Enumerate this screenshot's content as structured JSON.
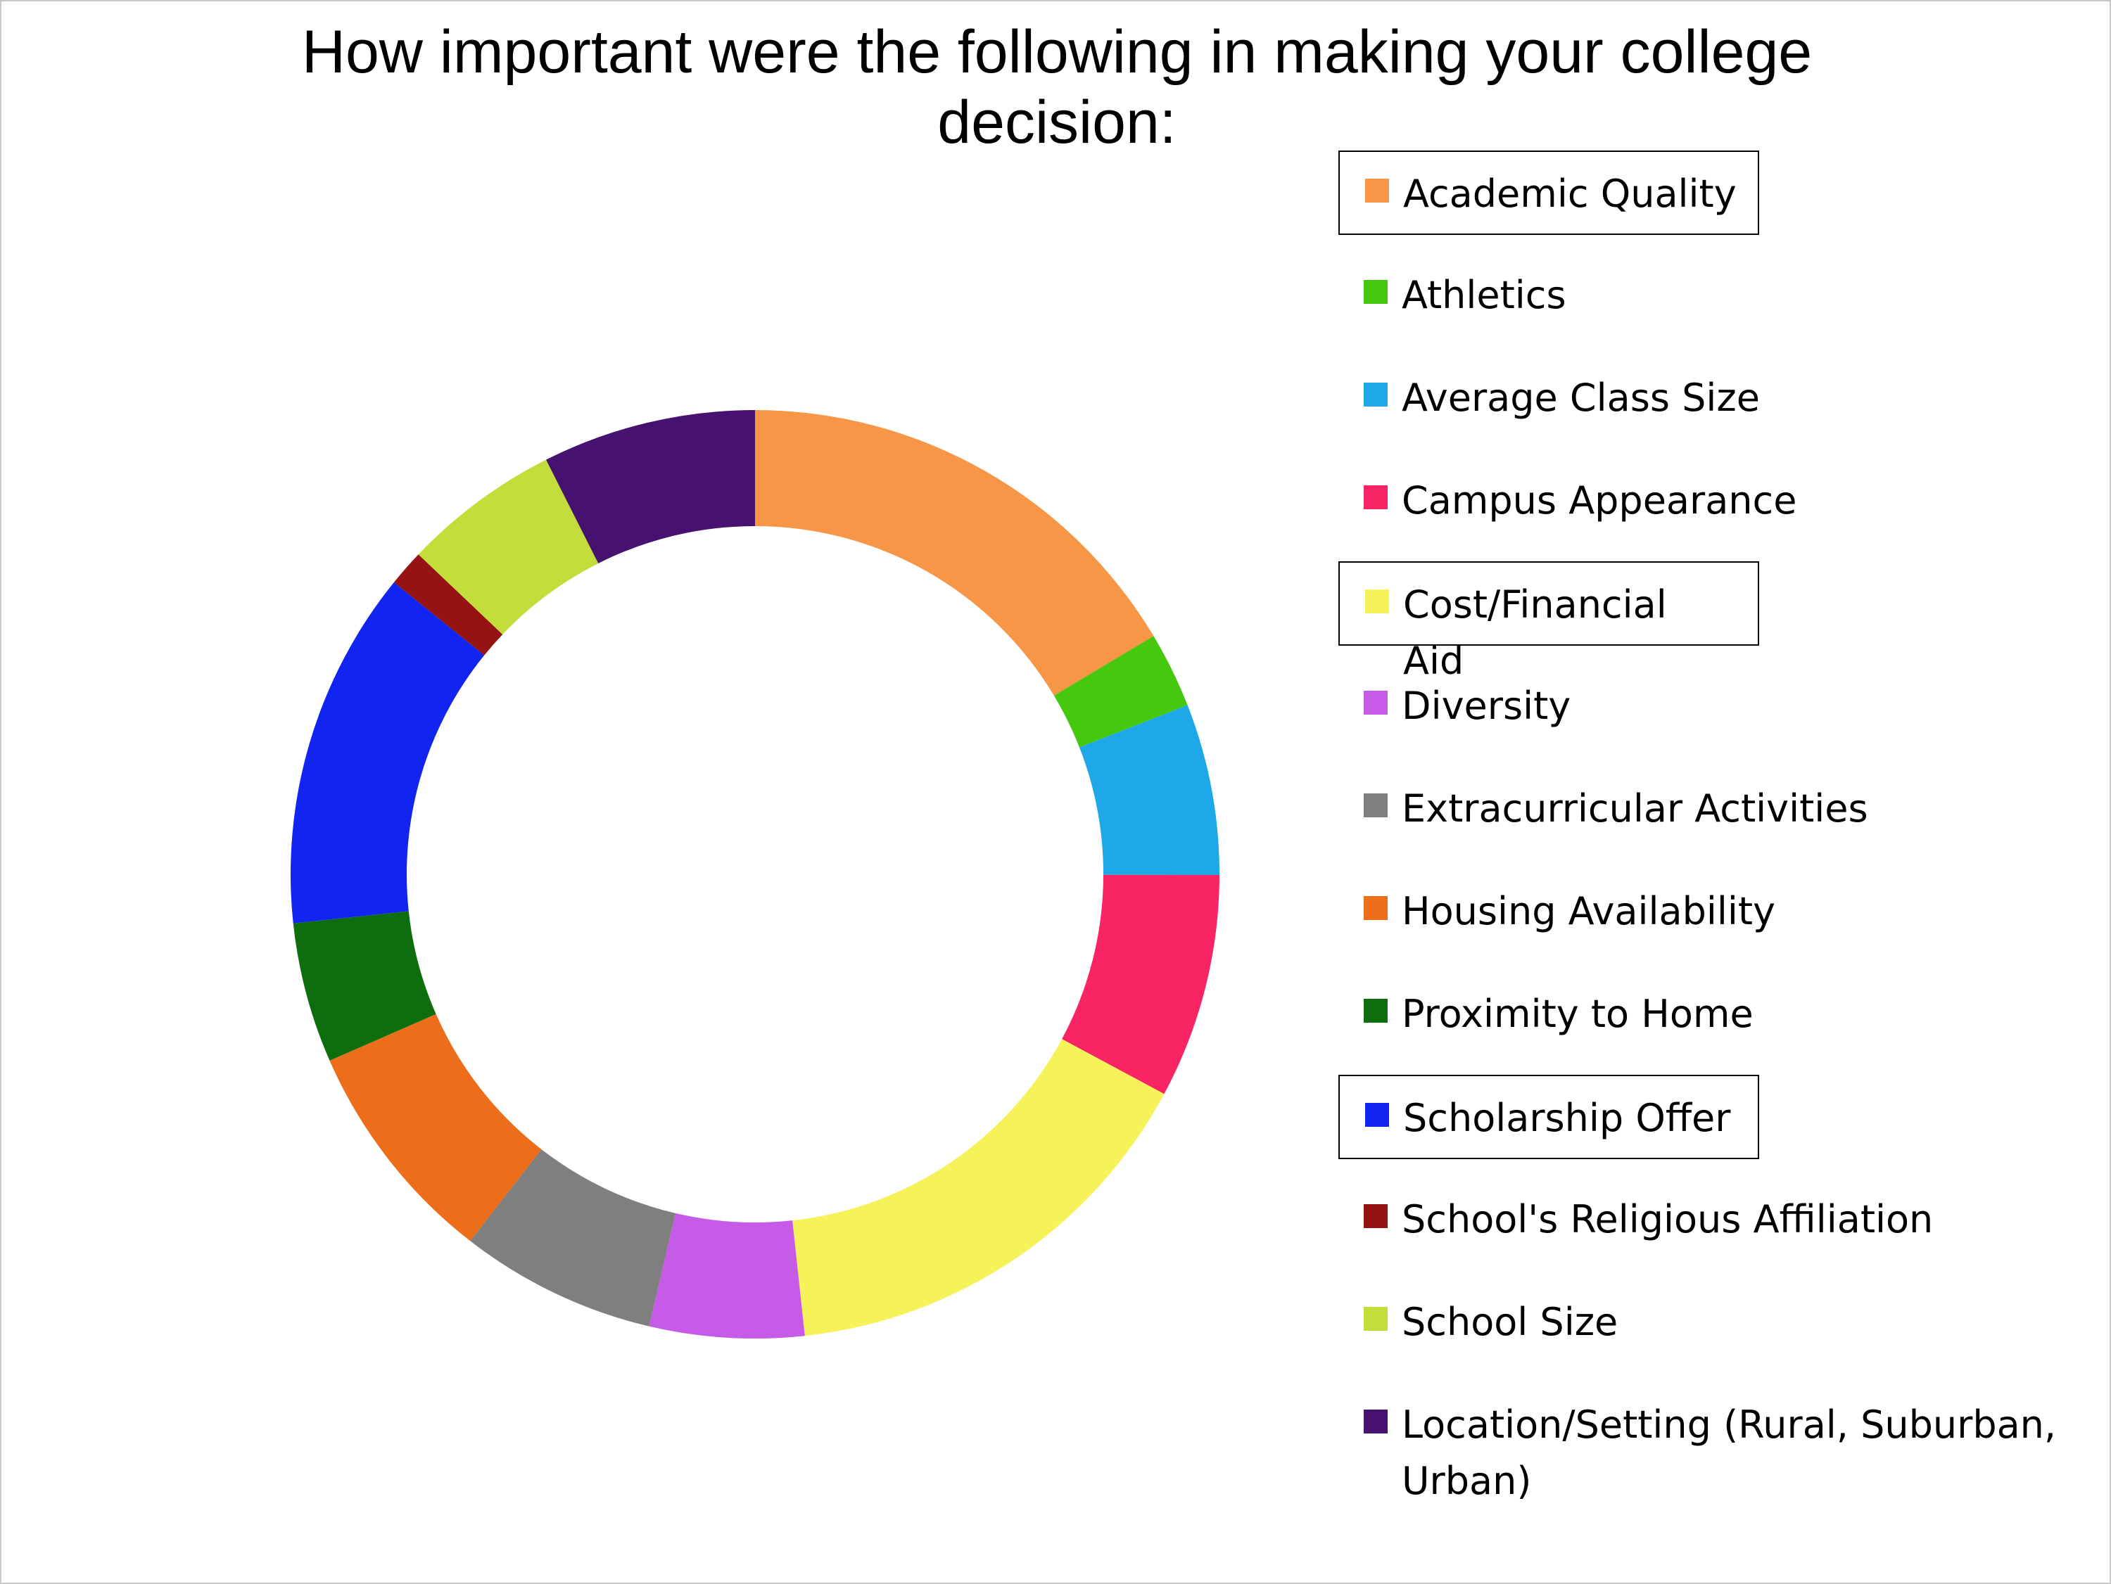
{
  "chart_data": {
    "type": "pie",
    "variant": "donut",
    "title": "How important were the following in making your college decision:",
    "legend_position": "right",
    "categories": [
      "Academic Quality",
      "Athletics",
      "Average Class Size",
      "Campus Appearance",
      "Cost/Financial Aid",
      "Diversity",
      "Extracurricular Activities",
      "Housing Availability",
      "Proximity to Home",
      "Scholarship Offer",
      "School's Religious Affiliation",
      "School Size",
      "Location/Setting (Rural, Suburban, Urban)"
    ],
    "values": [
      16.8,
      2.7,
      6.1,
      8.0,
      15.8,
      5.5,
      7.0,
      8.1,
      5.0,
      12.8,
      1.3,
      5.6,
      7.6
    ],
    "colors": [
      "#f79646",
      "#46c80f",
      "#1ea8e8",
      "#f92464",
      "#f6f25a",
      "#c55be6",
      "#7f7f7f",
      "#ec6d1a",
      "#0e6e0e",
      "#1224ef",
      "#961313",
      "#c3de3a",
      "#471170"
    ],
    "highlighted": [
      "Academic Quality",
      "Cost/Financial Aid",
      "Scholarship Offer"
    ]
  }
}
